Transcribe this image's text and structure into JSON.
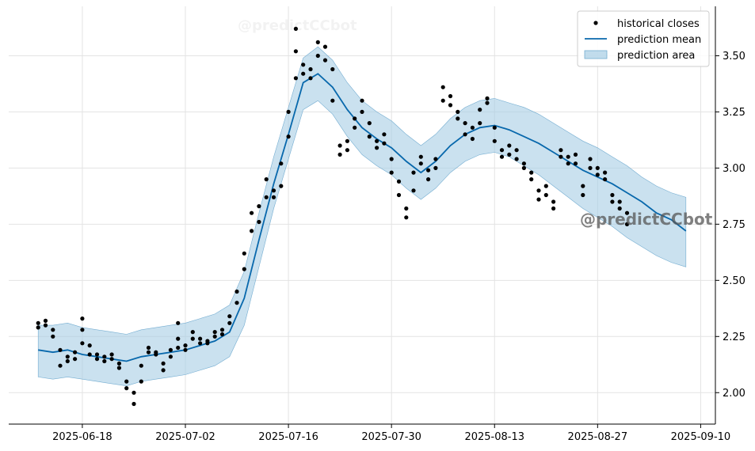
{
  "chart_data": {
    "type": "line",
    "x_axis": {
      "type": "date",
      "range": [
        "2025-06-08",
        "2025-09-12"
      ],
      "ticks": [
        "2025-06-18",
        "2025-07-02",
        "2025-07-16",
        "2025-07-30",
        "2025-08-13",
        "2025-08-27",
        "2025-09-10"
      ]
    },
    "y_axis": {
      "range": [
        1.86,
        3.72
      ],
      "ticks": [
        "2.00",
        "2.25",
        "2.50",
        "2.75",
        "3.00",
        "3.25",
        "3.50"
      ],
      "position": "right"
    },
    "grid": true,
    "legend": {
      "position": "top-right",
      "entries": [
        "historical closes",
        "prediction mean",
        "prediction area"
      ]
    },
    "watermarks": [
      "@predictCCbot",
      "@predictCCbot"
    ],
    "colors": {
      "mean": "#0868ac",
      "area": "#a6cde4",
      "area_edge": "#74add1",
      "points": "#000000",
      "grid": "#e3e3e3"
    },
    "series": [
      {
        "name": "prediction mean",
        "x": [
          "2025-06-12",
          "2025-06-14",
          "2025-06-16",
          "2025-06-18",
          "2025-06-20",
          "2025-06-22",
          "2025-06-24",
          "2025-06-26",
          "2025-06-28",
          "2025-06-30",
          "2025-07-02",
          "2025-07-04",
          "2025-07-06",
          "2025-07-08",
          "2025-07-10",
          "2025-07-12",
          "2025-07-14",
          "2025-07-16",
          "2025-07-18",
          "2025-07-20",
          "2025-07-22",
          "2025-07-24",
          "2025-07-26",
          "2025-07-28",
          "2025-07-30",
          "2025-08-01",
          "2025-08-03",
          "2025-08-05",
          "2025-08-07",
          "2025-08-09",
          "2025-08-11",
          "2025-08-13",
          "2025-08-15",
          "2025-08-17",
          "2025-08-19",
          "2025-08-21",
          "2025-08-23",
          "2025-08-25",
          "2025-08-27",
          "2025-08-29",
          "2025-08-31",
          "2025-09-02",
          "2025-09-04",
          "2025-09-06",
          "2025-09-08"
        ],
        "values": [
          2.19,
          2.18,
          2.19,
          2.17,
          2.16,
          2.15,
          2.14,
          2.16,
          2.17,
          2.18,
          2.19,
          2.21,
          2.23,
          2.27,
          2.42,
          2.68,
          2.93,
          3.15,
          3.38,
          3.42,
          3.36,
          3.26,
          3.18,
          3.13,
          3.09,
          3.03,
          2.98,
          3.03,
          3.1,
          3.15,
          3.18,
          3.19,
          3.17,
          3.14,
          3.11,
          3.07,
          3.03,
          2.99,
          2.96,
          2.93,
          2.89,
          2.85,
          2.8,
          2.77,
          2.72
        ]
      },
      {
        "name": "prediction area",
        "x": [
          "2025-06-12",
          "2025-06-14",
          "2025-06-16",
          "2025-06-18",
          "2025-06-20",
          "2025-06-22",
          "2025-06-24",
          "2025-06-26",
          "2025-06-28",
          "2025-06-30",
          "2025-07-02",
          "2025-07-04",
          "2025-07-06",
          "2025-07-08",
          "2025-07-10",
          "2025-07-12",
          "2025-07-14",
          "2025-07-16",
          "2025-07-18",
          "2025-07-20",
          "2025-07-22",
          "2025-07-24",
          "2025-07-26",
          "2025-07-28",
          "2025-07-30",
          "2025-08-01",
          "2025-08-03",
          "2025-08-05",
          "2025-08-07",
          "2025-08-09",
          "2025-08-11",
          "2025-08-13",
          "2025-08-15",
          "2025-08-17",
          "2025-08-19",
          "2025-08-21",
          "2025-08-23",
          "2025-08-25",
          "2025-08-27",
          "2025-08-29",
          "2025-08-31",
          "2025-09-02",
          "2025-09-04",
          "2025-09-06",
          "2025-09-08"
        ],
        "lower": [
          2.07,
          2.06,
          2.07,
          2.06,
          2.05,
          2.04,
          2.03,
          2.05,
          2.06,
          2.07,
          2.08,
          2.1,
          2.12,
          2.16,
          2.3,
          2.56,
          2.82,
          3.04,
          3.26,
          3.3,
          3.24,
          3.14,
          3.06,
          3.01,
          2.97,
          2.91,
          2.86,
          2.91,
          2.98,
          3.03,
          3.06,
          3.07,
          3.05,
          3.01,
          2.97,
          2.92,
          2.87,
          2.82,
          2.78,
          2.74,
          2.69,
          2.65,
          2.61,
          2.58,
          2.56
        ],
        "upper": [
          2.3,
          2.3,
          2.31,
          2.29,
          2.28,
          2.27,
          2.26,
          2.28,
          2.29,
          2.3,
          2.31,
          2.33,
          2.35,
          2.39,
          2.54,
          2.8,
          3.05,
          3.27,
          3.49,
          3.54,
          3.48,
          3.38,
          3.3,
          3.25,
          3.21,
          3.15,
          3.1,
          3.15,
          3.22,
          3.27,
          3.3,
          3.31,
          3.29,
          3.27,
          3.24,
          3.2,
          3.16,
          3.12,
          3.09,
          3.05,
          3.01,
          2.96,
          2.92,
          2.89,
          2.87
        ]
      },
      {
        "name": "historical closes",
        "points": [
          [
            "2025-06-12",
            2.29
          ],
          [
            "2025-06-12",
            2.31
          ],
          [
            "2025-06-13",
            2.3
          ],
          [
            "2025-06-13",
            2.32
          ],
          [
            "2025-06-14",
            2.28
          ],
          [
            "2025-06-14",
            2.25
          ],
          [
            "2025-06-15",
            2.19
          ],
          [
            "2025-06-15",
            2.12
          ],
          [
            "2025-06-16",
            2.14
          ],
          [
            "2025-06-16",
            2.16
          ],
          [
            "2025-06-17",
            2.15
          ],
          [
            "2025-06-17",
            2.18
          ],
          [
            "2025-06-18",
            2.22
          ],
          [
            "2025-06-18",
            2.28
          ],
          [
            "2025-06-18",
            2.33
          ],
          [
            "2025-06-19",
            2.21
          ],
          [
            "2025-06-19",
            2.17
          ],
          [
            "2025-06-20",
            2.15
          ],
          [
            "2025-06-20",
            2.17
          ],
          [
            "2025-06-21",
            2.16
          ],
          [
            "2025-06-21",
            2.14
          ],
          [
            "2025-06-22",
            2.17
          ],
          [
            "2025-06-22",
            2.15
          ],
          [
            "2025-06-23",
            2.11
          ],
          [
            "2025-06-23",
            2.13
          ],
          [
            "2025-06-24",
            2.05
          ],
          [
            "2025-06-24",
            2.02
          ],
          [
            "2025-06-25",
            1.95
          ],
          [
            "2025-06-25",
            2.0
          ],
          [
            "2025-06-26",
            2.05
          ],
          [
            "2025-06-26",
            2.12
          ],
          [
            "2025-06-27",
            2.18
          ],
          [
            "2025-06-27",
            2.2
          ],
          [
            "2025-06-28",
            2.18
          ],
          [
            "2025-06-28",
            2.17
          ],
          [
            "2025-06-29",
            2.13
          ],
          [
            "2025-06-29",
            2.1
          ],
          [
            "2025-06-30",
            2.16
          ],
          [
            "2025-06-30",
            2.19
          ],
          [
            "2025-07-01",
            2.2
          ],
          [
            "2025-07-01",
            2.24
          ],
          [
            "2025-07-01",
            2.31
          ],
          [
            "2025-07-02",
            2.19
          ],
          [
            "2025-07-02",
            2.21
          ],
          [
            "2025-07-03",
            2.24
          ],
          [
            "2025-07-03",
            2.27
          ],
          [
            "2025-07-04",
            2.24
          ],
          [
            "2025-07-04",
            2.22
          ],
          [
            "2025-07-05",
            2.22
          ],
          [
            "2025-07-05",
            2.23
          ],
          [
            "2025-07-06",
            2.25
          ],
          [
            "2025-07-06",
            2.27
          ],
          [
            "2025-07-07",
            2.28
          ],
          [
            "2025-07-07",
            2.26
          ],
          [
            "2025-07-08",
            2.31
          ],
          [
            "2025-07-08",
            2.34
          ],
          [
            "2025-07-09",
            2.4
          ],
          [
            "2025-07-09",
            2.45
          ],
          [
            "2025-07-10",
            2.55
          ],
          [
            "2025-07-10",
            2.62
          ],
          [
            "2025-07-11",
            2.72
          ],
          [
            "2025-07-11",
            2.8
          ],
          [
            "2025-07-12",
            2.76
          ],
          [
            "2025-07-12",
            2.83
          ],
          [
            "2025-07-13",
            2.87
          ],
          [
            "2025-07-13",
            2.95
          ],
          [
            "2025-07-14",
            2.9
          ],
          [
            "2025-07-14",
            2.87
          ],
          [
            "2025-07-15",
            2.92
          ],
          [
            "2025-07-15",
            3.02
          ],
          [
            "2025-07-16",
            3.14
          ],
          [
            "2025-07-16",
            3.25
          ],
          [
            "2025-07-17",
            3.4
          ],
          [
            "2025-07-17",
            3.52
          ],
          [
            "2025-07-17",
            3.62
          ],
          [
            "2025-07-18",
            3.46
          ],
          [
            "2025-07-18",
            3.42
          ],
          [
            "2025-07-19",
            3.44
          ],
          [
            "2025-07-19",
            3.4
          ],
          [
            "2025-07-20",
            3.5
          ],
          [
            "2025-07-20",
            3.56
          ],
          [
            "2025-07-21",
            3.54
          ],
          [
            "2025-07-21",
            3.48
          ],
          [
            "2025-07-22",
            3.44
          ],
          [
            "2025-07-22",
            3.3
          ],
          [
            "2025-07-23",
            3.1
          ],
          [
            "2025-07-23",
            3.06
          ],
          [
            "2025-07-24",
            3.12
          ],
          [
            "2025-07-24",
            3.08
          ],
          [
            "2025-07-25",
            3.18
          ],
          [
            "2025-07-25",
            3.22
          ],
          [
            "2025-07-26",
            3.25
          ],
          [
            "2025-07-26",
            3.3
          ],
          [
            "2025-07-27",
            3.2
          ],
          [
            "2025-07-27",
            3.14
          ],
          [
            "2025-07-28",
            3.12
          ],
          [
            "2025-07-28",
            3.09
          ],
          [
            "2025-07-29",
            3.15
          ],
          [
            "2025-07-29",
            3.11
          ],
          [
            "2025-07-30",
            3.04
          ],
          [
            "2025-07-30",
            2.98
          ],
          [
            "2025-07-31",
            2.94
          ],
          [
            "2025-07-31",
            2.88
          ],
          [
            "2025-08-01",
            2.82
          ],
          [
            "2025-08-01",
            2.78
          ],
          [
            "2025-08-02",
            2.9
          ],
          [
            "2025-08-02",
            2.98
          ],
          [
            "2025-08-03",
            3.02
          ],
          [
            "2025-08-03",
            3.05
          ],
          [
            "2025-08-04",
            2.95
          ],
          [
            "2025-08-04",
            2.99
          ],
          [
            "2025-08-05",
            3.0
          ],
          [
            "2025-08-05",
            3.04
          ],
          [
            "2025-08-06",
            3.3
          ],
          [
            "2025-08-06",
            3.36
          ],
          [
            "2025-08-07",
            3.32
          ],
          [
            "2025-08-07",
            3.28
          ],
          [
            "2025-08-08",
            3.25
          ],
          [
            "2025-08-08",
            3.22
          ],
          [
            "2025-08-09",
            3.2
          ],
          [
            "2025-08-09",
            3.15
          ],
          [
            "2025-08-10",
            3.18
          ],
          [
            "2025-08-10",
            3.13
          ],
          [
            "2025-08-11",
            3.2
          ],
          [
            "2025-08-11",
            3.26
          ],
          [
            "2025-08-12",
            3.29
          ],
          [
            "2025-08-12",
            3.31
          ],
          [
            "2025-08-13",
            3.18
          ],
          [
            "2025-08-13",
            3.12
          ],
          [
            "2025-08-14",
            3.05
          ],
          [
            "2025-08-14",
            3.08
          ],
          [
            "2025-08-15",
            3.1
          ],
          [
            "2025-08-15",
            3.06
          ],
          [
            "2025-08-16",
            3.08
          ],
          [
            "2025-08-16",
            3.04
          ],
          [
            "2025-08-17",
            3.02
          ],
          [
            "2025-08-17",
            3.0
          ],
          [
            "2025-08-18",
            2.98
          ],
          [
            "2025-08-18",
            2.95
          ],
          [
            "2025-08-19",
            2.9
          ],
          [
            "2025-08-19",
            2.86
          ],
          [
            "2025-08-20",
            2.92
          ],
          [
            "2025-08-20",
            2.88
          ],
          [
            "2025-08-21",
            2.85
          ],
          [
            "2025-08-21",
            2.82
          ],
          [
            "2025-08-22",
            3.05
          ],
          [
            "2025-08-22",
            3.08
          ],
          [
            "2025-08-23",
            3.02
          ],
          [
            "2025-08-23",
            3.05
          ],
          [
            "2025-08-24",
            3.06
          ],
          [
            "2025-08-24",
            3.02
          ],
          [
            "2025-08-25",
            2.92
          ],
          [
            "2025-08-25",
            2.88
          ],
          [
            "2025-08-26",
            3.0
          ],
          [
            "2025-08-26",
            3.04
          ],
          [
            "2025-08-27",
            3.0
          ],
          [
            "2025-08-27",
            2.97
          ],
          [
            "2025-08-28",
            2.98
          ],
          [
            "2025-08-28",
            2.95
          ],
          [
            "2025-08-29",
            2.88
          ],
          [
            "2025-08-29",
            2.85
          ],
          [
            "2025-08-30",
            2.85
          ],
          [
            "2025-08-30",
            2.82
          ],
          [
            "2025-08-31",
            2.8
          ],
          [
            "2025-08-31",
            2.75
          ]
        ]
      }
    ]
  }
}
